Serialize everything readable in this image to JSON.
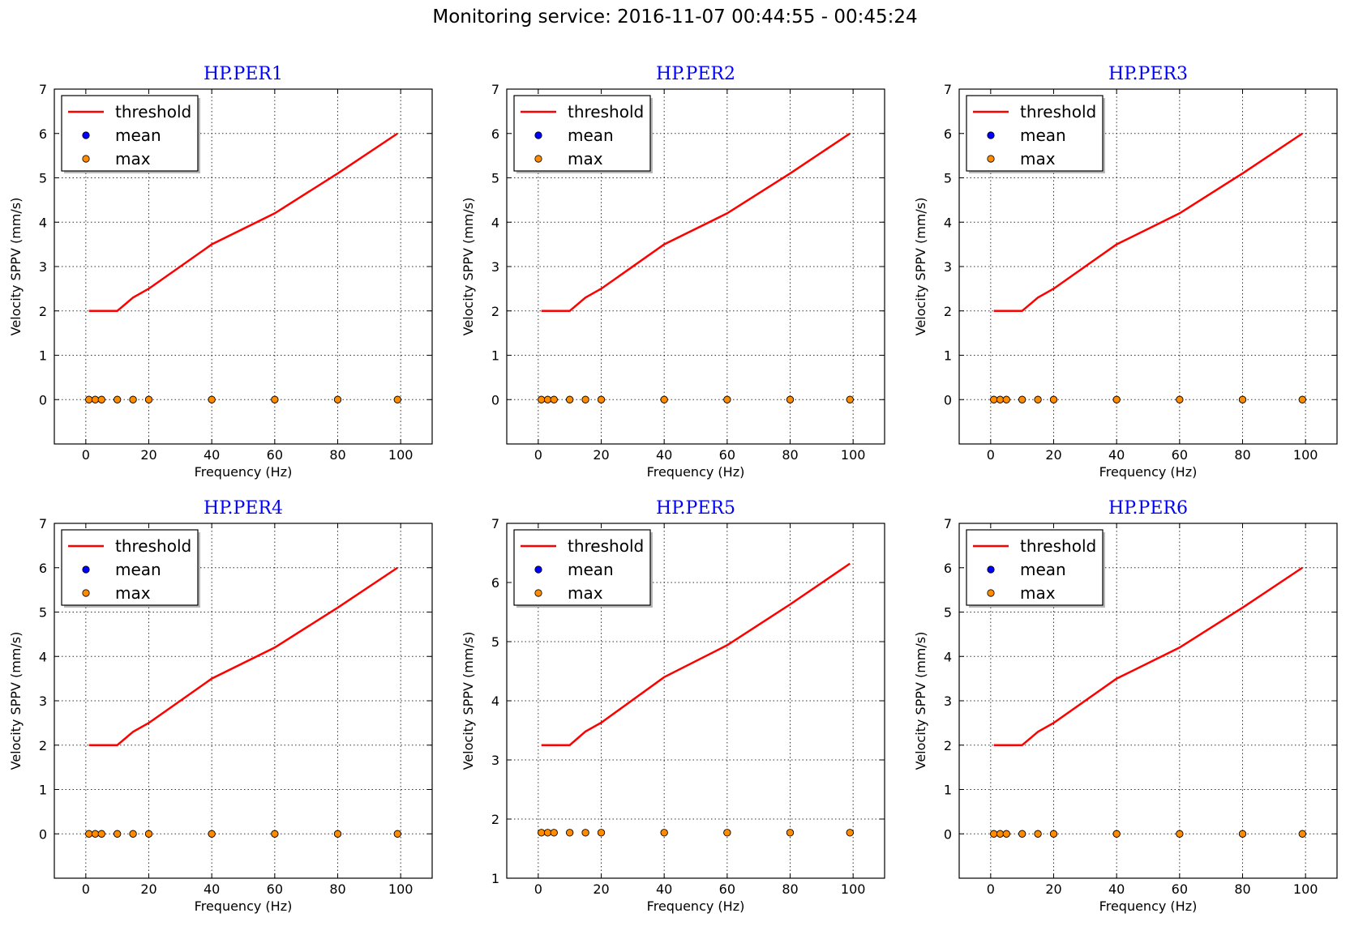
{
  "figure": {
    "title": "Monitoring service: 2016-11-07 00:44:55 - 00:45:24"
  },
  "colors": {
    "threshold": "#ff0000",
    "mean": "#0000ff",
    "max": "#ff8c00",
    "title": "#0000ff"
  },
  "chart_data": [
    {
      "type": "line",
      "title": "HP.PER1",
      "xlabel": "Frequency (Hz)",
      "ylabel": "Velocity SPPV (mm/s)",
      "xlim": [
        -10,
        110
      ],
      "ylim": [
        -1,
        7
      ],
      "xticks": [
        0,
        20,
        40,
        60,
        80,
        100
      ],
      "yticks": [
        0,
        1,
        2,
        3,
        4,
        5,
        6,
        7
      ],
      "grid": true,
      "legend_position": "top-left",
      "series": [
        {
          "name": "threshold",
          "type": "line",
          "x": [
            1,
            2,
            5,
            10,
            15,
            20,
            40,
            60,
            80,
            99
          ],
          "y": [
            2,
            2,
            2,
            2,
            2.3,
            2.5,
            3.5,
            4.2,
            5.1,
            6
          ]
        },
        {
          "name": "mean",
          "type": "scatter",
          "x": [
            1,
            3,
            5,
            10,
            15,
            20,
            40,
            60,
            80,
            99
          ],
          "y": [
            0,
            0,
            0,
            0,
            0,
            0,
            0,
            0,
            0,
            0
          ]
        },
        {
          "name": "max",
          "type": "scatter",
          "x": [
            1,
            3,
            5,
            10,
            15,
            20,
            40,
            60,
            80,
            99
          ],
          "y": [
            0,
            0,
            0,
            0,
            0,
            0,
            0,
            0,
            0,
            0
          ]
        }
      ]
    },
    {
      "type": "line",
      "title": "HP.PER2",
      "xlabel": "Frequency (Hz)",
      "ylabel": "Velocity SPPV (mm/s)",
      "xlim": [
        -10,
        110
      ],
      "ylim": [
        -1,
        7
      ],
      "xticks": [
        0,
        20,
        40,
        60,
        80,
        100
      ],
      "yticks": [
        0,
        1,
        2,
        3,
        4,
        5,
        6,
        7
      ],
      "grid": true,
      "legend_position": "top-left",
      "series": [
        {
          "name": "threshold",
          "type": "line",
          "x": [
            1,
            2,
            5,
            10,
            15,
            20,
            40,
            60,
            80,
            99
          ],
          "y": [
            2,
            2,
            2,
            2,
            2.3,
            2.5,
            3.5,
            4.2,
            5.1,
            6
          ]
        },
        {
          "name": "mean",
          "type": "scatter",
          "x": [
            1,
            3,
            5,
            10,
            15,
            20,
            40,
            60,
            80,
            99
          ],
          "y": [
            0,
            0,
            0,
            0,
            0,
            0,
            0,
            0,
            0,
            0
          ]
        },
        {
          "name": "max",
          "type": "scatter",
          "x": [
            1,
            3,
            5,
            10,
            15,
            20,
            40,
            60,
            80,
            99
          ],
          "y": [
            0,
            0,
            0,
            0,
            0,
            0,
            0,
            0,
            0,
            0
          ]
        }
      ]
    },
    {
      "type": "line",
      "title": "HP.PER3",
      "xlabel": "Frequency (Hz)",
      "ylabel": "Velocity SPPV (mm/s)",
      "xlim": [
        -10,
        110
      ],
      "ylim": [
        -1,
        7
      ],
      "xticks": [
        0,
        20,
        40,
        60,
        80,
        100
      ],
      "yticks": [
        0,
        1,
        2,
        3,
        4,
        5,
        6,
        7
      ],
      "grid": true,
      "legend_position": "top-left",
      "series": [
        {
          "name": "threshold",
          "type": "line",
          "x": [
            1,
            2,
            5,
            10,
            15,
            20,
            40,
            60,
            80,
            99
          ],
          "y": [
            2,
            2,
            2,
            2,
            2.3,
            2.5,
            3.5,
            4.2,
            5.1,
            6
          ]
        },
        {
          "name": "mean",
          "type": "scatter",
          "x": [
            1,
            3,
            5,
            10,
            15,
            20,
            40,
            60,
            80,
            99
          ],
          "y": [
            0,
            0,
            0,
            0,
            0,
            0,
            0,
            0,
            0,
            0
          ]
        },
        {
          "name": "max",
          "type": "scatter",
          "x": [
            1,
            3,
            5,
            10,
            15,
            20,
            40,
            60,
            80,
            99
          ],
          "y": [
            0,
            0,
            0,
            0,
            0,
            0,
            0,
            0,
            0,
            0
          ]
        }
      ]
    },
    {
      "type": "line",
      "title": "HP.PER4",
      "xlabel": "Frequency (Hz)",
      "ylabel": "Velocity SPPV (mm/s)",
      "xlim": [
        -10,
        110
      ],
      "ylim": [
        -1,
        7
      ],
      "xticks": [
        0,
        20,
        40,
        60,
        80,
        100
      ],
      "yticks": [
        0,
        1,
        2,
        3,
        4,
        5,
        6,
        7
      ],
      "grid": true,
      "legend_position": "top-left",
      "series": [
        {
          "name": "threshold",
          "type": "line",
          "x": [
            1,
            2,
            5,
            10,
            15,
            20,
            40,
            60,
            80,
            99
          ],
          "y": [
            2,
            2,
            2,
            2,
            2.3,
            2.5,
            3.5,
            4.2,
            5.1,
            6
          ]
        },
        {
          "name": "mean",
          "type": "scatter",
          "x": [
            1,
            3,
            5,
            10,
            15,
            20,
            40,
            60,
            80,
            99
          ],
          "y": [
            0,
            0,
            0,
            0,
            0,
            0,
            0,
            0,
            0,
            0
          ]
        },
        {
          "name": "max",
          "type": "scatter",
          "x": [
            1,
            3,
            5,
            10,
            15,
            20,
            40,
            60,
            80,
            99
          ],
          "y": [
            0,
            0,
            0,
            0,
            0,
            0,
            0,
            0,
            0,
            0
          ]
        }
      ]
    },
    {
      "type": "line",
      "title": "HP.PER5",
      "xlabel": "Frequency (Hz)",
      "ylabel": "Velocity SPPV (mm/s)",
      "xlim": [
        -10,
        110
      ],
      "ylim": [
        1,
        7
      ],
      "xticks": [
        0,
        20,
        40,
        60,
        80,
        100
      ],
      "yticks": [
        1,
        2,
        3,
        4,
        5,
        6,
        7
      ],
      "grid": true,
      "legend_position": "top-left",
      "series": [
        {
          "name": "threshold",
          "type": "line",
          "x": [
            1,
            2,
            5,
            10,
            15,
            20,
            40,
            60,
            80,
            99
          ],
          "y": [
            3.25,
            3.25,
            3.25,
            3.25,
            3.48,
            3.63,
            4.4,
            4.94,
            5.63,
            6.32
          ]
        },
        {
          "name": "mean",
          "type": "scatter",
          "x": [
            1,
            3,
            5,
            10,
            15,
            20,
            40,
            60,
            80,
            99
          ],
          "y": [
            1.77,
            1.77,
            1.77,
            1.77,
            1.77,
            1.77,
            1.77,
            1.77,
            1.77,
            1.77
          ]
        },
        {
          "name": "max",
          "type": "scatter",
          "x": [
            1,
            3,
            5,
            10,
            15,
            20,
            40,
            60,
            80,
            99
          ],
          "y": [
            1.77,
            1.77,
            1.77,
            1.77,
            1.77,
            1.77,
            1.77,
            1.77,
            1.77,
            1.77
          ]
        }
      ]
    },
    {
      "type": "line",
      "title": "HP.PER6",
      "xlabel": "Frequency (Hz)",
      "ylabel": "Velocity SPPV (mm/s)",
      "xlim": [
        -10,
        110
      ],
      "ylim": [
        -1,
        7
      ],
      "xticks": [
        0,
        20,
        40,
        60,
        80,
        100
      ],
      "yticks": [
        0,
        1,
        2,
        3,
        4,
        5,
        6,
        7
      ],
      "grid": true,
      "legend_position": "top-left",
      "series": [
        {
          "name": "threshold",
          "type": "line",
          "x": [
            1,
            2,
            5,
            10,
            15,
            20,
            40,
            60,
            80,
            99
          ],
          "y": [
            2,
            2,
            2,
            2,
            2.3,
            2.5,
            3.5,
            4.2,
            5.1,
            6
          ]
        },
        {
          "name": "mean",
          "type": "scatter",
          "x": [
            1,
            3,
            5,
            10,
            15,
            20,
            40,
            60,
            80,
            99
          ],
          "y": [
            0,
            0,
            0,
            0,
            0,
            0,
            0,
            0,
            0,
            0
          ]
        },
        {
          "name": "max",
          "type": "scatter",
          "x": [
            1,
            3,
            5,
            10,
            15,
            20,
            40,
            60,
            80,
            99
          ],
          "y": [
            0,
            0,
            0,
            0,
            0,
            0,
            0,
            0,
            0,
            0
          ]
        }
      ]
    }
  ]
}
